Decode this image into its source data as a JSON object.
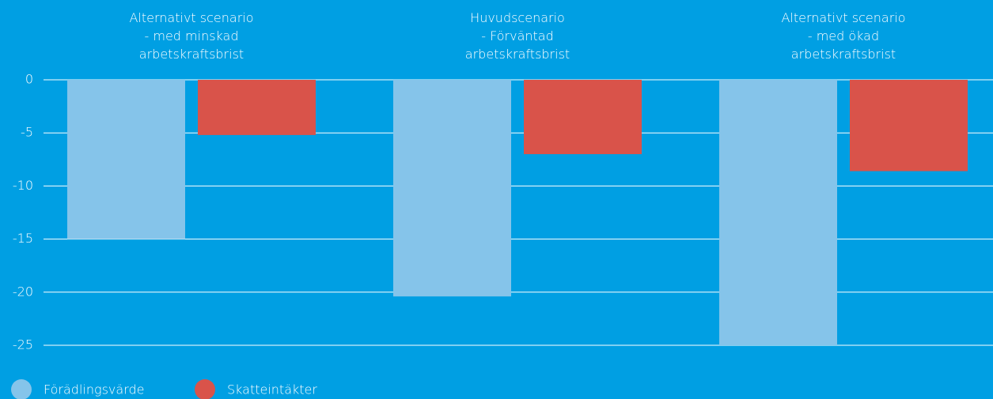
{
  "chart_data": {
    "type": "bar",
    "categories": [
      "Alternativt scenario\n- med minskad\narbetskraftsbrist",
      "Huvudscenario\n- Förväntad\narbetskraftsbrist",
      "Alternativt scenario\n- med ökad\narbetskraftsbrist"
    ],
    "series": [
      {
        "name": "Förädlingsvärde",
        "color": "#85c4ea",
        "values": [
          -15,
          -20.4,
          -25
        ]
      },
      {
        "name": "Skatteintäkter",
        "color": "#d9534a",
        "values": [
          -5.2,
          -7.0,
          -8.6
        ]
      }
    ],
    "ylim": [
      -25,
      0
    ],
    "yticks": [
      0,
      -5,
      -10,
      -15,
      -20,
      -25
    ],
    "grid": true,
    "legend": "bottom-left"
  }
}
